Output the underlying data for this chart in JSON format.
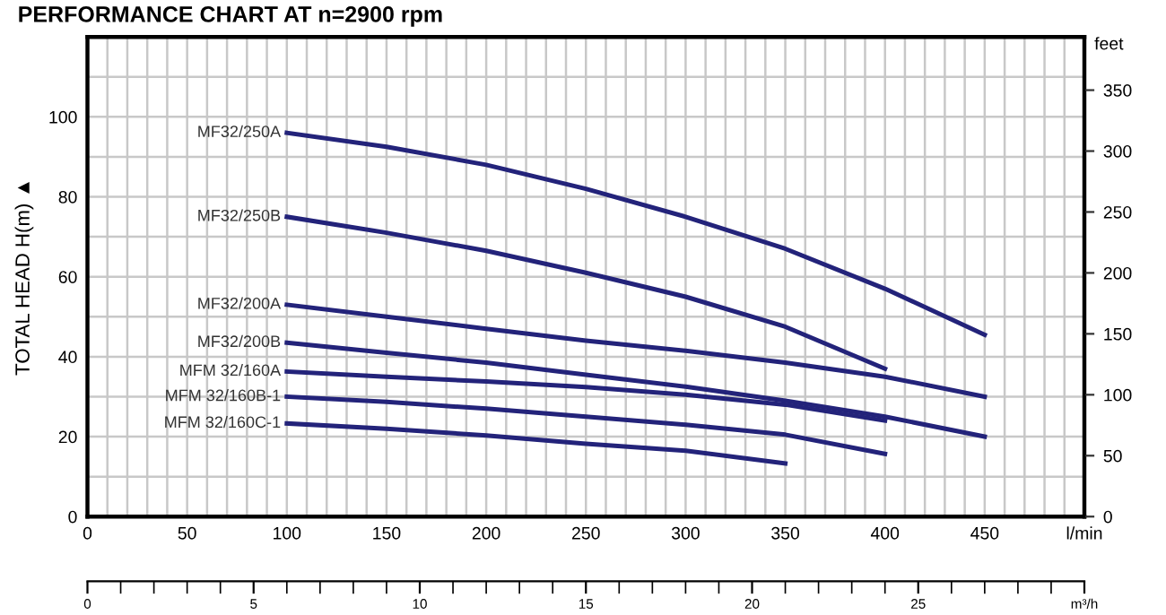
{
  "chart_data": {
    "type": "line",
    "title": "PERFORMANCE CHART AT n=2900 rpm",
    "ylabel": "TOTAL HEAD H(m) ▲",
    "y2label": "feet",
    "xlim": [
      0,
      500
    ],
    "ylim": [
      0,
      120
    ],
    "y2lim": [
      0,
      393.7
    ],
    "x2lim": [
      0,
      30
    ],
    "xticks": [
      0,
      {
        "value": 10,
        "label": null
      },
      {
        "value": 20,
        "label": null
      },
      {
        "value": 30,
        "label": null
      },
      {
        "value": 40,
        "label": null
      },
      50,
      {
        "value": 60,
        "label": null
      },
      {
        "value": 70,
        "label": null
      },
      {
        "value": 80,
        "label": null
      },
      {
        "value": 90,
        "label": null
      },
      100,
      {
        "value": 110,
        "label": null
      },
      {
        "value": 120,
        "label": null
      },
      {
        "value": 130,
        "label": null
      },
      {
        "value": 140,
        "label": null
      },
      150,
      {
        "value": 160,
        "label": null
      },
      {
        "value": 170,
        "label": null
      },
      {
        "value": 180,
        "label": null
      },
      {
        "value": 190,
        "label": null
      },
      200,
      {
        "value": 210,
        "label": null
      },
      {
        "value": 220,
        "label": null
      },
      {
        "value": 230,
        "label": null
      },
      {
        "value": 240,
        "label": null
      },
      250,
      {
        "value": 260,
        "label": null
      },
      {
        "value": 270,
        "label": null
      },
      {
        "value": 280,
        "label": null
      },
      {
        "value": 290,
        "label": null
      },
      300,
      {
        "value": 310,
        "label": null
      },
      {
        "value": 320,
        "label": null
      },
      {
        "value": 330,
        "label": null
      },
      {
        "value": 340,
        "label": null
      },
      350,
      {
        "value": 360,
        "label": null
      },
      {
        "value": 370,
        "label": null
      },
      {
        "value": 380,
        "label": null
      },
      {
        "value": 390,
        "label": null
      },
      400,
      {
        "value": 410,
        "label": null
      },
      {
        "value": 420,
        "label": null
      },
      {
        "value": 430,
        "label": null
      },
      {
        "value": 440,
        "label": null
      },
      450,
      {
        "value": 460,
        "label": null
      },
      {
        "value": 470,
        "label": null
      },
      {
        "value": 480,
        "label": null
      },
      {
        "value": 490,
        "label": null
      },
      {
        "value": 500,
        "label": "l/min"
      }
    ],
    "yticks": [
      0,
      {
        "value": 10,
        "label": null
      },
      20,
      {
        "value": 30,
        "label": null
      },
      40,
      {
        "value": 50,
        "label": null
      },
      60,
      {
        "value": 70,
        "label": null
      },
      80,
      {
        "value": 90,
        "label": null
      },
      100,
      {
        "value": 110,
        "label": null
      },
      {
        "value": 120,
        "label": null
      }
    ],
    "y2ticks": [
      0,
      50,
      100,
      150,
      200,
      250,
      300,
      350
    ],
    "x2ticks": [
      0,
      5,
      10,
      15,
      20,
      25,
      {
        "value": 30,
        "label": "m³/h"
      }
    ],
    "grid": true,
    "legend": false,
    "marker": "none",
    "line_style": "solid",
    "series": [
      {
        "name": "MF32/250A",
        "color": "#23237a",
        "x": [
          100,
          150,
          200,
          250,
          300,
          350,
          400,
          450
        ],
        "values": [
          96,
          92.5,
          88,
          82,
          75,
          67,
          57,
          45.5
        ]
      },
      {
        "name": "MF32/250B",
        "color": "#23237a",
        "x": [
          100,
          150,
          200,
          250,
          300,
          350,
          400
        ],
        "values": [
          75,
          71,
          66.5,
          61,
          55,
          47.5,
          37
        ]
      },
      {
        "name": "MF32/200A",
        "color": "#23237a",
        "x": [
          100,
          150,
          200,
          250,
          300,
          350,
          400,
          450
        ],
        "values": [
          53,
          50,
          47,
          44,
          41.5,
          38.5,
          35,
          30
        ]
      },
      {
        "name": "MF32/200B",
        "color": "#23237a",
        "x": [
          100,
          150,
          200,
          250,
          300,
          350,
          400,
          450
        ],
        "values": [
          43.5,
          41,
          38.5,
          35.5,
          32.5,
          29,
          25,
          20
        ]
      },
      {
        "name": "MFM 32/160A",
        "color": "#23237a",
        "x": [
          100,
          150,
          200,
          250,
          300,
          350,
          400
        ],
        "values": [
          36.3,
          35,
          33.8,
          32.4,
          30.5,
          28,
          24
        ]
      },
      {
        "name": "MFM 32/160B-1",
        "color": "#23237a",
        "x": [
          100,
          150,
          200,
          250,
          300,
          350,
          400
        ],
        "values": [
          30,
          28.7,
          27,
          25,
          23,
          20.5,
          15.7
        ]
      },
      {
        "name": "MFM 32/160C-1",
        "color": "#23237a",
        "x": [
          100,
          150,
          200,
          250,
          300,
          350
        ],
        "values": [
          23.3,
          22,
          20.3,
          18.2,
          16.5,
          13.3
        ]
      }
    ]
  }
}
